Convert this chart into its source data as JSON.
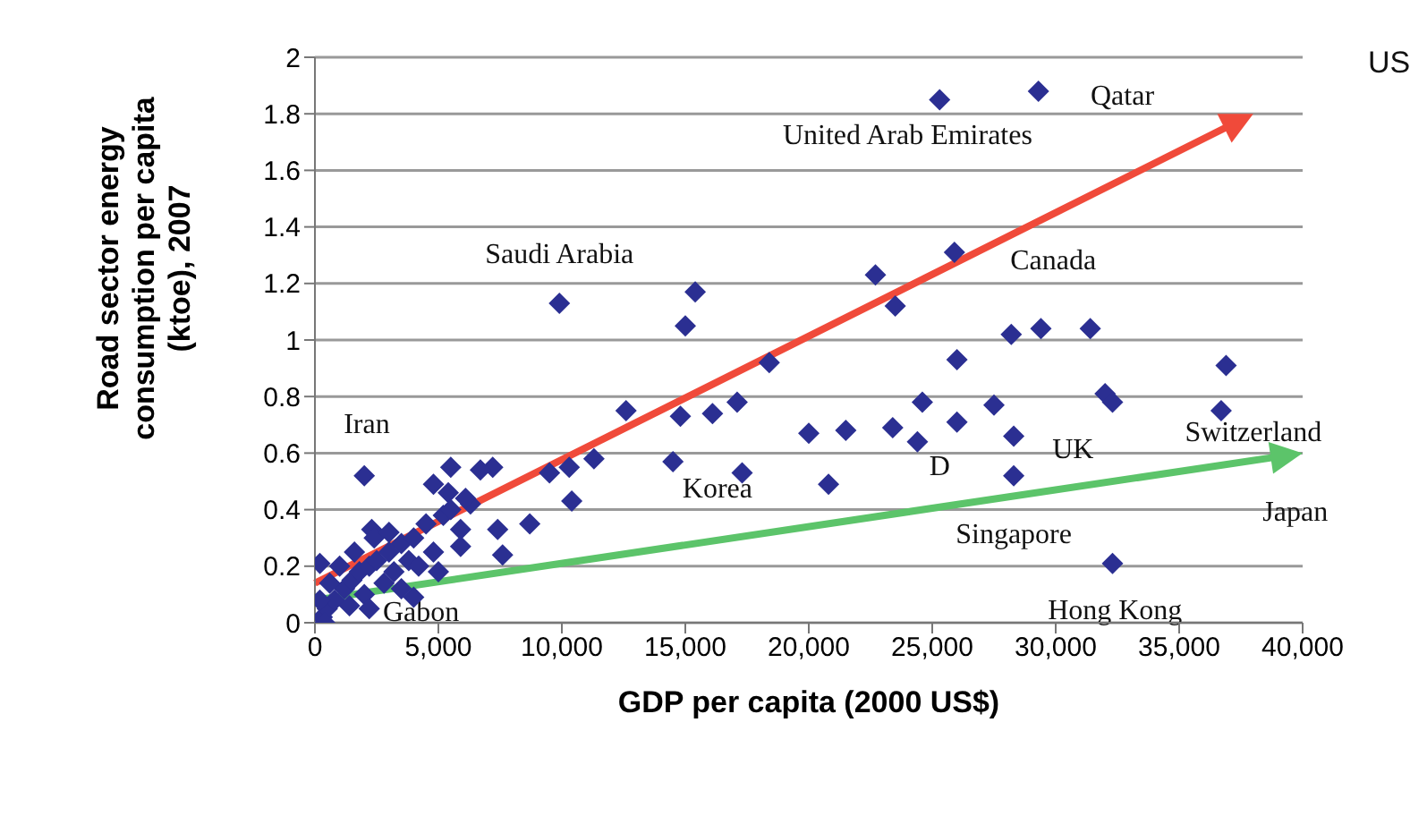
{
  "chart_data": {
    "type": "scatter",
    "xlabel": "GDP per capita (2000 US$)",
    "ylabel": "Road sector energy consumption per capita (ktoe), 2007",
    "xlim": [
      0,
      40000
    ],
    "xticks": [
      0,
      {
        "value": 5000,
        "label": "5,000"
      },
      {
        "value": 10000,
        "label": "10,000"
      },
      {
        "value": 15000,
        "label": "15,000"
      },
      {
        "value": 20000,
        "label": "20,000"
      },
      {
        "value": 25000,
        "label": "25,000"
      },
      {
        "value": 30000,
        "label": "30,000"
      },
      {
        "value": 35000,
        "label": "35,000"
      },
      {
        "value": 40000,
        "label": "40,000"
      }
    ],
    "ylim": [
      0,
      2
    ],
    "yticks": [
      0,
      0.2,
      0.4,
      0.6,
      0.8,
      1,
      1.2,
      1.4,
      1.6,
      1.8,
      2
    ],
    "grid": "y",
    "marker": "diamond",
    "series": [
      {
        "color": "#2b2f92",
        "x": [
          9900,
          15400,
          15000,
          18400,
          25300,
          29300,
          25900,
          22700,
          23500,
          28200,
          29400,
          31400,
          36900,
          26000,
          24600,
          27500,
          32000,
          32300,
          21500,
          23400,
          24400,
          26000,
          28300,
          28300,
          20800,
          32300,
          36700,
          12600,
          14800,
          16100,
          17100,
          20000,
          14500,
          17300,
          11300,
          10300,
          9500,
          10400,
          8700,
          7400,
          7600,
          7200,
          6700,
          5500,
          4800,
          2000,
          5900,
          5900,
          6300,
          5400,
          6100,
          2300,
          5000,
          4000,
          200,
          300,
          500,
          800,
          1200,
          1500,
          1800,
          2200,
          2500,
          3000,
          3500,
          4000,
          4500,
          600,
          1000,
          1400,
          2000,
          2800,
          3200,
          3800,
          4200,
          4800,
          5200,
          5500,
          200,
          400,
          1600,
          2400,
          3000,
          3500,
          2200
        ],
        "values": [
          1.13,
          1.17,
          1.05,
          0.92,
          1.85,
          1.88,
          1.31,
          1.23,
          1.12,
          1.02,
          1.04,
          1.04,
          0.91,
          0.93,
          0.78,
          0.77,
          0.81,
          0.78,
          0.68,
          0.69,
          0.64,
          0.71,
          0.66,
          0.52,
          0.49,
          0.21,
          0.75,
          0.75,
          0.73,
          0.74,
          0.78,
          0.67,
          0.57,
          0.53,
          0.58,
          0.55,
          0.53,
          0.43,
          0.35,
          0.33,
          0.24,
          0.55,
          0.54,
          0.55,
          0.49,
          0.52,
          0.27,
          0.33,
          0.42,
          0.46,
          0.44,
          0.33,
          0.18,
          0.09,
          0.21,
          0.02,
          0.05,
          0.08,
          0.12,
          0.15,
          0.18,
          0.2,
          0.22,
          0.25,
          0.28,
          0.3,
          0.35,
          0.14,
          0.2,
          0.06,
          0.1,
          0.14,
          0.18,
          0.22,
          0.2,
          0.25,
          0.38,
          0.4,
          0.08,
          0,
          0.25,
          0.3,
          0.32,
          0.12,
          0.05
        ]
      }
    ],
    "annotations": [
      "US",
      "United Arab Emirates",
      "Qatar",
      "Saudi Arabia",
      "Canada",
      "Iran",
      "Switzerland",
      "Korea",
      "D",
      "UK",
      "Singapore",
      "Japan",
      "Hong Kong",
      "Gabon"
    ]
  }
}
